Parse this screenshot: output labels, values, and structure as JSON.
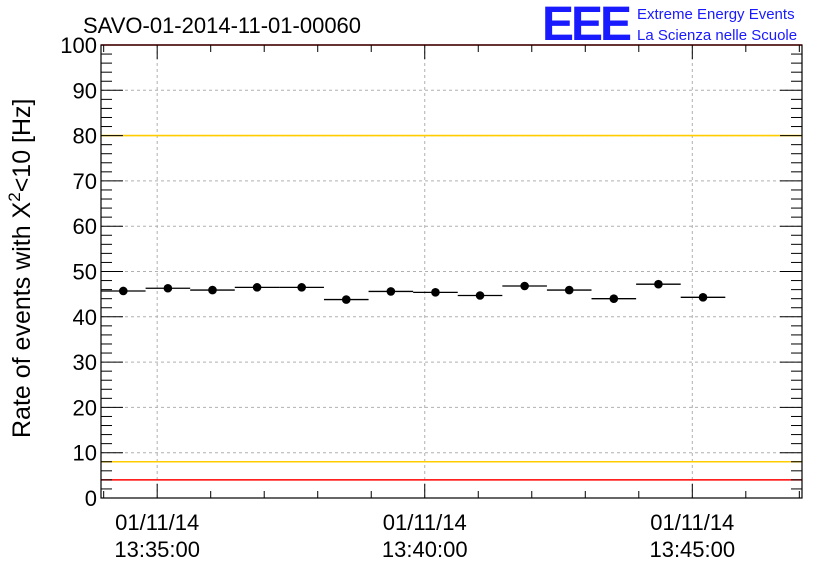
{
  "header": {
    "run_title": "SAVO-01-2014-11-01-00060",
    "logo_mark": "EEE",
    "logo_line1": "Extreme Energy Events",
    "logo_line2": "La Scienza nelle Scuole"
  },
  "colors": {
    "red_limit": "#ff0000",
    "yellow_limit": "#ffcc00",
    "marker": "#000000",
    "grid": "#b0b0b0",
    "logo": "#1a1aff"
  },
  "chart_data": {
    "type": "scatter",
    "title": "SAVO-01-2014-11-01-00060",
    "ylabel_main": "Rate of events with X",
    "ylabel_sup": "2",
    "ylabel_rest": "<10 [Hz]",
    "ylim": [
      0,
      100
    ],
    "y_ticks": [
      0,
      10,
      20,
      30,
      40,
      50,
      60,
      70,
      80,
      90,
      100
    ],
    "xlim": [
      "01/11/14 13:33:57",
      "01/11/14 13:47:03"
    ],
    "x_ticks": [
      {
        "date": "01/11/14",
        "time": "13:35:00"
      },
      {
        "date": "01/11/14",
        "time": "13:40:00"
      },
      {
        "date": "01/11/14",
        "time": "13:45:00"
      }
    ],
    "grid": true,
    "reference_lines": [
      {
        "y": 100,
        "color": "red"
      },
      {
        "y": 80,
        "color": "yellow"
      },
      {
        "y": 8,
        "color": "yellow"
      },
      {
        "y": 4,
        "color": "red"
      }
    ],
    "bin_seconds": 50,
    "points": [
      {
        "time": "13:34:22",
        "y": 45.7
      },
      {
        "time": "13:35:12",
        "y": 46.3
      },
      {
        "time": "13:36:02",
        "y": 45.9
      },
      {
        "time": "13:36:52",
        "y": 46.5
      },
      {
        "time": "13:37:42",
        "y": 46.5
      },
      {
        "time": "13:38:32",
        "y": 43.8
      },
      {
        "time": "13:39:22",
        "y": 45.6
      },
      {
        "time": "13:40:12",
        "y": 45.4
      },
      {
        "time": "13:41:02",
        "y": 44.7
      },
      {
        "time": "13:41:52",
        "y": 46.8
      },
      {
        "time": "13:42:42",
        "y": 45.9
      },
      {
        "time": "13:43:32",
        "y": 44.0
      },
      {
        "time": "13:44:22",
        "y": 47.2
      },
      {
        "time": "13:45:12",
        "y": 44.3
      }
    ]
  }
}
